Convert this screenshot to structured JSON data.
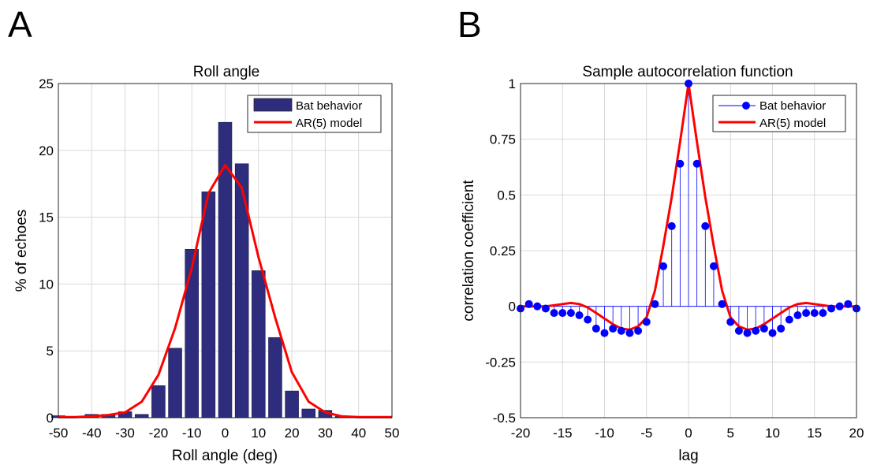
{
  "panels": {
    "a_letter": "A",
    "b_letter": "B"
  },
  "colors": {
    "bar": "#2e2c7c",
    "model": "#ff0000",
    "stem": "#0000ff",
    "grid": "#d9d9d9"
  },
  "chart_data": [
    {
      "type": "bar",
      "title": "Roll angle",
      "xlabel": "Roll angle (deg)",
      "ylabel": "% of echoes",
      "xlim": [
        -50,
        50
      ],
      "ylim": [
        0,
        25
      ],
      "xticks": [
        -50,
        -40,
        -30,
        -20,
        -10,
        0,
        10,
        20,
        30,
        40,
        50
      ],
      "yticks": [
        0,
        5,
        10,
        15,
        20,
        25
      ],
      "grid": true,
      "legend": {
        "position": "top-right",
        "entries": [
          "Bat behavior",
          "AR(5) model"
        ]
      },
      "bar_width": 4,
      "series": [
        {
          "name": "Bat behavior",
          "kind": "bar",
          "x": [
            -50,
            -45,
            -40,
            -35,
            -30,
            -25,
            -20,
            -15,
            -10,
            -5,
            0,
            5,
            10,
            15,
            20,
            25,
            30,
            35,
            40,
            45,
            50
          ],
          "values": [
            0.15,
            0,
            0.25,
            0.25,
            0.45,
            0.25,
            2.4,
            5.2,
            12.6,
            16.9,
            22.1,
            19.0,
            11.0,
            6.0,
            2.0,
            0.65,
            0.55,
            0.1,
            0,
            0,
            0
          ]
        },
        {
          "name": "AR(5) model",
          "kind": "line",
          "x": [
            -50,
            -45,
            -40,
            -35,
            -30,
            -25,
            -20,
            -15,
            -10,
            -5,
            0,
            5,
            10,
            15,
            20,
            25,
            30,
            35,
            40,
            45,
            50
          ],
          "values": [
            0.05,
            0.05,
            0.1,
            0.2,
            0.4,
            1.2,
            3.2,
            6.7,
            11.2,
            16.8,
            18.9,
            17.2,
            12.0,
            7.5,
            3.4,
            1.2,
            0.4,
            0.1,
            0.05,
            0.05,
            0.05
          ]
        }
      ]
    },
    {
      "type": "line",
      "title": "Sample autocorrelation function",
      "xlabel": "lag",
      "ylabel": "correlation coefficient",
      "xlim": [
        -20,
        20
      ],
      "ylim": [
        -0.5,
        1
      ],
      "xticks": [
        -20,
        -15,
        -10,
        -5,
        0,
        5,
        10,
        15,
        20
      ],
      "yticks": [
        -0.5,
        -0.25,
        0,
        0.25,
        0.5,
        0.75,
        1
      ],
      "ytick_labels": [
        "-0.5",
        "-0.25",
        "0",
        "0.25",
        "0.5",
        "0.75",
        "1"
      ],
      "grid": true,
      "legend": {
        "position": "top-right",
        "entries": [
          "Bat behavior",
          "AR(5) model"
        ]
      },
      "series": [
        {
          "name": "Bat behavior",
          "kind": "stem",
          "x": [
            -20,
            -19,
            -18,
            -17,
            -16,
            -15,
            -14,
            -13,
            -12,
            -11,
            -10,
            -9,
            -8,
            -7,
            -6,
            -5,
            -4,
            -3,
            -2,
            -1,
            0,
            1,
            2,
            3,
            4,
            5,
            6,
            7,
            8,
            9,
            10,
            11,
            12,
            13,
            14,
            15,
            16,
            17,
            18,
            19,
            20
          ],
          "values": [
            -0.01,
            0.01,
            0.0,
            -0.01,
            -0.03,
            -0.03,
            -0.03,
            -0.04,
            -0.06,
            -0.1,
            -0.12,
            -0.1,
            -0.11,
            -0.12,
            -0.11,
            -0.07,
            0.01,
            0.18,
            0.36,
            0.64,
            1.0,
            0.64,
            0.36,
            0.18,
            0.01,
            -0.07,
            -0.11,
            -0.12,
            -0.11,
            -0.1,
            -0.12,
            -0.1,
            -0.06,
            -0.04,
            -0.03,
            -0.03,
            -0.03,
            -0.01,
            0.0,
            0.01,
            -0.01
          ]
        },
        {
          "name": "AR(5) model",
          "kind": "line",
          "x": [
            -20,
            -19,
            -18,
            -17,
            -16,
            -15,
            -14,
            -13,
            -12,
            -11,
            -10,
            -9,
            -8,
            -7,
            -6,
            -5,
            -4,
            -3,
            -2,
            -1,
            0,
            1,
            2,
            3,
            4,
            5,
            6,
            7,
            8,
            9,
            10,
            11,
            12,
            13,
            14,
            15,
            16,
            17,
            18,
            19,
            20
          ],
          "values": [
            0.0,
            0.0,
            0.0,
            0.0,
            0.005,
            0.01,
            0.015,
            0.01,
            -0.005,
            -0.03,
            -0.055,
            -0.08,
            -0.1,
            -0.105,
            -0.09,
            -0.05,
            0.07,
            0.27,
            0.49,
            0.74,
            1.0,
            0.74,
            0.49,
            0.27,
            0.07,
            -0.05,
            -0.09,
            -0.105,
            -0.1,
            -0.08,
            -0.055,
            -0.03,
            -0.005,
            0.01,
            0.015,
            0.01,
            0.005,
            0.0,
            0.0,
            0.0,
            0.0
          ]
        }
      ]
    }
  ]
}
